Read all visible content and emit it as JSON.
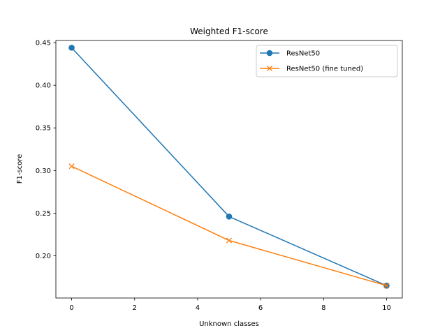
{
  "chart_data": {
    "type": "line",
    "title": "Weighted F1-score",
    "xlabel": "Unknown classes",
    "ylabel": "F1-score",
    "xlim": [
      -0.5,
      10.5
    ],
    "ylim": [
      0.1505,
      0.4525
    ],
    "xticks": [
      0,
      2,
      4,
      6,
      8,
      10
    ],
    "yticks": [
      0.2,
      0.25,
      0.3,
      0.35,
      0.4,
      0.45
    ],
    "xtick_labels": [
      "0",
      "2",
      "4",
      "6",
      "8",
      "10"
    ],
    "ytick_labels": [
      "0.20",
      "0.25",
      "0.30",
      "0.35",
      "0.40",
      "0.45"
    ],
    "grid": false,
    "legend_position": "top-right",
    "series": [
      {
        "name": "ResNet50",
        "x": [
          0,
          5,
          10
        ],
        "y": [
          0.444,
          0.246,
          0.165
        ],
        "color": "#1f77b4",
        "marker": "circle"
      },
      {
        "name": "ResNet50 (fine tuned)",
        "x": [
          0,
          5,
          10
        ],
        "y": [
          0.305,
          0.218,
          0.165
        ],
        "color": "#ff7f0e",
        "marker": "x"
      }
    ]
  }
}
